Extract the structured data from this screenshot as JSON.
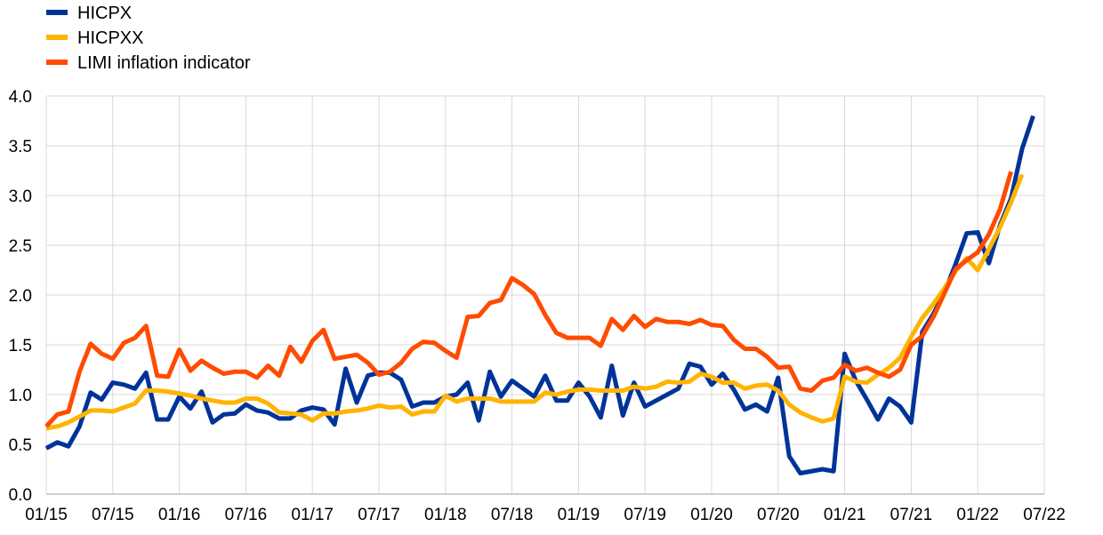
{
  "chart_data": {
    "type": "line",
    "title": "",
    "xlabel": "",
    "ylabel": "",
    "ylim": [
      0,
      4
    ],
    "yticks": [
      "0.0",
      "0.5",
      "1.0",
      "1.5",
      "2.0",
      "2.5",
      "3.0",
      "3.5",
      "4.0"
    ],
    "xticks": [
      "01/15",
      "07/15",
      "01/16",
      "07/16",
      "01/17",
      "07/17",
      "01/18",
      "07/18",
      "01/19",
      "07/19",
      "01/20",
      "07/20",
      "01/21",
      "07/21",
      "01/22",
      "07/22"
    ],
    "x_start": "01/15",
    "grid": true,
    "legend_position": "top-left",
    "series": [
      {
        "name": "HICPX",
        "color": "#003399",
        "values": [
          0.46,
          0.52,
          0.48,
          0.68,
          1.02,
          0.95,
          1.12,
          1.1,
          1.06,
          1.22,
          0.75,
          0.75,
          0.98,
          0.86,
          1.03,
          0.72,
          0.8,
          0.81,
          0.9,
          0.84,
          0.82,
          0.76,
          0.76,
          0.84,
          0.87,
          0.85,
          0.7,
          1.26,
          0.92,
          1.19,
          1.22,
          1.22,
          1.15,
          0.88,
          0.92,
          0.92,
          0.98,
          1.0,
          1.12,
          0.74,
          1.23,
          0.98,
          1.14,
          1.06,
          0.98,
          1.19,
          0.94,
          0.94,
          1.12,
          0.98,
          0.77,
          1.29,
          0.79,
          1.12,
          0.88,
          0.94,
          1.0,
          1.06,
          1.31,
          1.28,
          1.1,
          1.21,
          1.05,
          0.85,
          0.9,
          0.83,
          1.17,
          0.38,
          0.21,
          0.23,
          0.25,
          0.23,
          1.41,
          1.14,
          0.95,
          0.75,
          0.96,
          0.88,
          0.72,
          1.63,
          1.81,
          2.03,
          2.31,
          2.62,
          2.63,
          2.32,
          2.7,
          2.97,
          3.47,
          3.8
        ]
      },
      {
        "name": "HICPXX",
        "color": "#FFB400",
        "values": [
          0.66,
          0.68,
          0.72,
          0.78,
          0.84,
          0.84,
          0.83,
          0.87,
          0.91,
          1.04,
          1.04,
          1.03,
          1.01,
          0.99,
          0.96,
          0.94,
          0.92,
          0.92,
          0.96,
          0.96,
          0.91,
          0.82,
          0.81,
          0.8,
          0.74,
          0.81,
          0.81,
          0.83,
          0.84,
          0.86,
          0.89,
          0.87,
          0.88,
          0.8,
          0.83,
          0.83,
          0.99,
          0.93,
          0.96,
          0.96,
          0.96,
          0.93,
          0.93,
          0.93,
          0.93,
          1.02,
          1.0,
          1.03,
          1.05,
          1.05,
          1.04,
          1.04,
          1.04,
          1.08,
          1.06,
          1.08,
          1.13,
          1.12,
          1.13,
          1.21,
          1.18,
          1.12,
          1.12,
          1.06,
          1.09,
          1.1,
          1.04,
          0.9,
          0.82,
          0.77,
          0.73,
          0.76,
          1.18,
          1.13,
          1.12,
          1.2,
          1.27,
          1.37,
          1.58,
          1.77,
          1.91,
          2.07,
          2.24,
          2.37,
          2.25,
          2.46,
          2.68,
          2.93,
          3.21
        ]
      },
      {
        "name": "LIMI inflation indicator",
        "color": "#FF4B00",
        "values": [
          0.68,
          0.8,
          0.83,
          1.23,
          1.51,
          1.41,
          1.36,
          1.52,
          1.57,
          1.69,
          1.19,
          1.18,
          1.45,
          1.24,
          1.34,
          1.27,
          1.21,
          1.23,
          1.23,
          1.17,
          1.29,
          1.19,
          1.48,
          1.33,
          1.54,
          1.65,
          1.36,
          1.38,
          1.4,
          1.32,
          1.2,
          1.23,
          1.32,
          1.46,
          1.53,
          1.52,
          1.44,
          1.37,
          1.78,
          1.79,
          1.92,
          1.95,
          2.17,
          2.1,
          2.01,
          1.8,
          1.62,
          1.57,
          1.57,
          1.57,
          1.49,
          1.76,
          1.65,
          1.79,
          1.68,
          1.76,
          1.73,
          1.73,
          1.71,
          1.75,
          1.7,
          1.69,
          1.55,
          1.46,
          1.46,
          1.38,
          1.27,
          1.28,
          1.06,
          1.04,
          1.14,
          1.17,
          1.3,
          1.24,
          1.27,
          1.22,
          1.18,
          1.25,
          1.5,
          1.59,
          1.78,
          2.02,
          2.26,
          2.35,
          2.43,
          2.61,
          2.86,
          3.24
        ]
      }
    ]
  }
}
